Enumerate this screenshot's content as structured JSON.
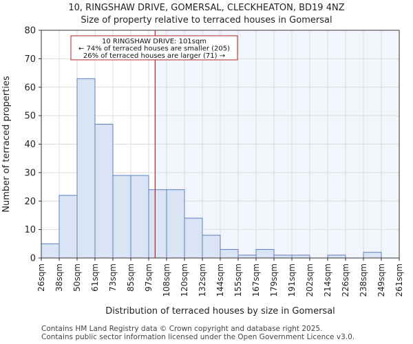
{
  "chart_data": {
    "type": "bar",
    "title": "10, RINGSHAW DRIVE, GOMERSAL, CLECKHEATON, BD19 4NZ",
    "subtitle": "Size of property relative to terraced houses in Gomersal",
    "xlabel": "Distribution of terraced houses by size in Gomersal",
    "ylabel": "Number of terraced properties",
    "ylim": [
      0,
      80
    ],
    "yticks": [
      0,
      10,
      20,
      30,
      40,
      50,
      60,
      70,
      80
    ],
    "bin_edges": [
      "26sqm",
      "38sqm",
      "50sqm",
      "61sqm",
      "73sqm",
      "85sqm",
      "97sqm",
      "108sqm",
      "120sqm",
      "132sqm",
      "144sqm",
      "155sqm",
      "167sqm",
      "179sqm",
      "191sqm",
      "202sqm",
      "214sqm",
      "226sqm",
      "238sqm",
      "249sqm",
      "261sqm"
    ],
    "values": [
      5,
      22,
      63,
      47,
      29,
      29,
      24,
      24,
      14,
      8,
      3,
      1,
      3,
      1,
      1,
      0,
      1,
      0,
      2,
      0
    ],
    "marker": {
      "value_sqm": 101,
      "bin_position": 6.36,
      "label_lines": [
        "10 RINGSHAW DRIVE: 101sqm",
        "← 74% of terraced houses are smaller (205)",
        "26% of terraced houses are larger (71) →"
      ]
    },
    "grid": true,
    "colors": {
      "bar_fill": "#dbe4f5",
      "bar_stroke": "#5a7fbf",
      "highlight_bg": "#f2f5fc",
      "marker": "#b0242a",
      "grid": "#dcdcdc"
    }
  },
  "footer": {
    "line1": "Contains HM Land Registry data © Crown copyright and database right 2025.",
    "line2": "Contains public sector information licensed under the Open Government Licence v3.0."
  }
}
